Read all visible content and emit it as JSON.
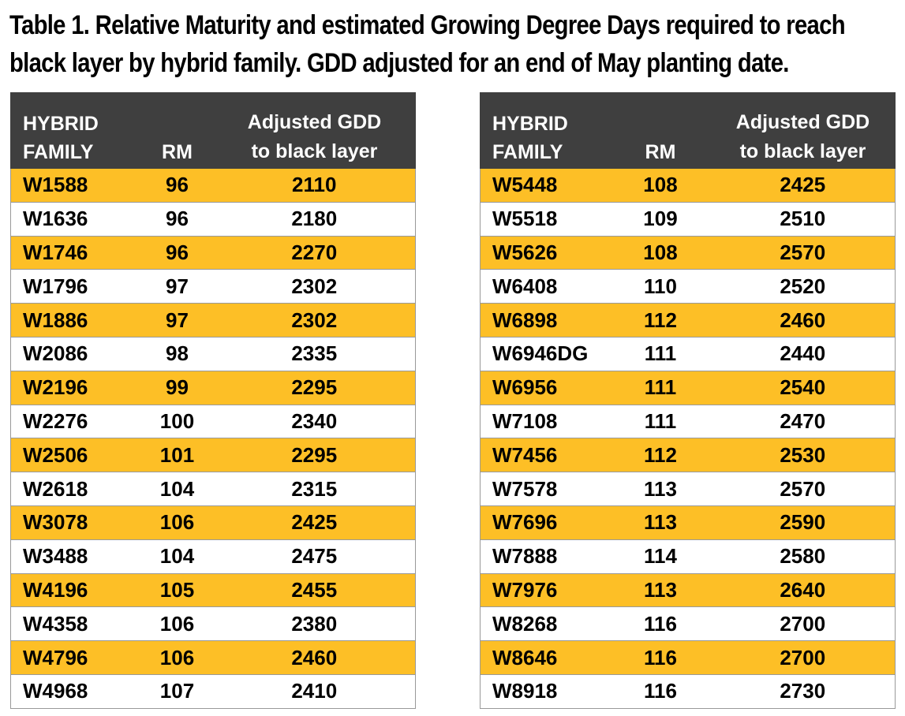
{
  "caption": {
    "line1": "Table 1. Relative Maturity and estimated Growing Degree Days required to reach",
    "line2": "black layer by hybrid family. GDD adjusted for an end of May planting date."
  },
  "colors": {
    "header_bg": "#3f3f3f",
    "highlight_row": "#fdbf26"
  },
  "tables": [
    {
      "headers": {
        "family_line1": "HYBRID",
        "family_line2": "FAMILY",
        "rm": "RM",
        "gdd_line1": "Adjusted GDD",
        "gdd_line2": "to black layer"
      },
      "rows": [
        {
          "family": "W1588",
          "rm": "96",
          "gdd": "2110"
        },
        {
          "family": "W1636",
          "rm": "96",
          "gdd": "2180"
        },
        {
          "family": "W1746",
          "rm": "96",
          "gdd": "2270"
        },
        {
          "family": "W1796",
          "rm": "97",
          "gdd": "2302"
        },
        {
          "family": "W1886",
          "rm": "97",
          "gdd": "2302"
        },
        {
          "family": "W2086",
          "rm": "98",
          "gdd": "2335"
        },
        {
          "family": "W2196",
          "rm": "99",
          "gdd": "2295"
        },
        {
          "family": "W2276",
          "rm": "100",
          "gdd": "2340"
        },
        {
          "family": "W2506",
          "rm": "101",
          "gdd": "2295"
        },
        {
          "family": "W2618",
          "rm": "104",
          "gdd": "2315"
        },
        {
          "family": "W3078",
          "rm": "106",
          "gdd": "2425"
        },
        {
          "family": "W3488",
          "rm": "104",
          "gdd": "2475"
        },
        {
          "family": "W4196",
          "rm": "105",
          "gdd": "2455"
        },
        {
          "family": "W4358",
          "rm": "106",
          "gdd": "2380"
        },
        {
          "family": "W4796",
          "rm": "106",
          "gdd": "2460"
        },
        {
          "family": "W4968",
          "rm": "107",
          "gdd": "2410"
        }
      ]
    },
    {
      "headers": {
        "family_line1": "HYBRID",
        "family_line2": "FAMILY",
        "rm": "RM",
        "gdd_line1": "Adjusted GDD",
        "gdd_line2": "to black layer"
      },
      "rows": [
        {
          "family": "W5448",
          "rm": "108",
          "gdd": "2425"
        },
        {
          "family": "W5518",
          "rm": "109",
          "gdd": "2510"
        },
        {
          "family": "W5626",
          "rm": "108",
          "gdd": "2570"
        },
        {
          "family": "W6408",
          "rm": "110",
          "gdd": "2520"
        },
        {
          "family": "W6898",
          "rm": "112",
          "gdd": "2460"
        },
        {
          "family": "W6946DG",
          "rm": "111",
          "gdd": "2440"
        },
        {
          "family": "W6956",
          "rm": "111",
          "gdd": "2540"
        },
        {
          "family": "W7108",
          "rm": "111",
          "gdd": "2470"
        },
        {
          "family": "W7456",
          "rm": "112",
          "gdd": "2530"
        },
        {
          "family": "W7578",
          "rm": "113",
          "gdd": "2570"
        },
        {
          "family": "W7696",
          "rm": "113",
          "gdd": "2590"
        },
        {
          "family": "W7888",
          "rm": "114",
          "gdd": "2580"
        },
        {
          "family": "W7976",
          "rm": "113",
          "gdd": "2640"
        },
        {
          "family": "W8268",
          "rm": "116",
          "gdd": "2700"
        },
        {
          "family": "W8646",
          "rm": "116",
          "gdd": "2700"
        },
        {
          "family": "W8918",
          "rm": "116",
          "gdd": "2730"
        }
      ]
    }
  ]
}
